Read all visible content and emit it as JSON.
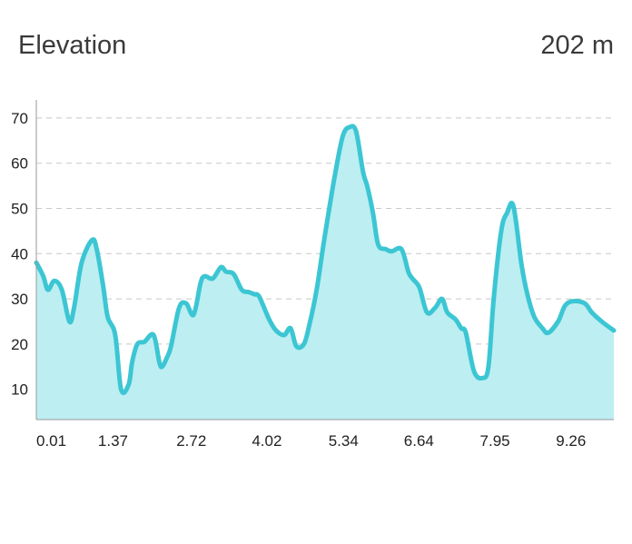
{
  "header": {
    "title": "Elevation",
    "value": "202 m"
  },
  "colors": {
    "line": "#3cc6d3",
    "fill": "#bdeef2",
    "grid": "#c8c8c8",
    "axis": "#9a9a9a"
  },
  "chart_data": {
    "type": "area",
    "title": "",
    "xlabel": "",
    "ylabel": "",
    "xlim": [
      0.01,
      9.96
    ],
    "ylim": [
      3.3,
      74
    ],
    "grid": true,
    "y_ticks": [
      10,
      20,
      30,
      40,
      50,
      60,
      70
    ],
    "x_ticks": [
      0.01,
      1.37,
      2.72,
      4.02,
      5.34,
      6.64,
      7.95,
      9.26
    ],
    "x_tick_labels": [
      "0.01",
      "1.37",
      "2.72",
      "4.02",
      "5.34",
      "6.64",
      "7.95",
      "9.26"
    ],
    "series": [
      {
        "x": [
          0.01,
          0.13,
          0.21,
          0.32,
          0.45,
          0.58,
          0.66,
          0.79,
          0.97,
          1.05,
          1.16,
          1.24,
          1.37,
          1.47,
          1.6,
          1.66,
          1.75,
          1.87,
          2.03,
          2.13,
          2.18,
          2.26,
          2.33,
          2.47,
          2.59,
          2.72,
          2.84,
          2.91,
          3.05,
          3.19,
          3.28,
          3.41,
          3.55,
          3.67,
          3.77,
          3.85,
          4.02,
          4.14,
          4.28,
          4.39,
          4.49,
          4.62,
          4.71,
          4.84,
          4.97,
          5.15,
          5.29,
          5.41,
          5.52,
          5.64,
          5.71,
          5.81,
          5.9,
          6.03,
          6.13,
          6.3,
          6.42,
          6.49,
          6.61,
          6.74,
          6.88,
          7.0,
          7.09,
          7.23,
          7.33,
          7.41,
          7.55,
          7.7,
          7.8,
          7.89,
          8.02,
          8.12,
          8.23,
          8.37,
          8.47,
          8.59,
          8.73,
          8.83,
          9.0,
          9.12,
          9.26,
          9.46,
          9.58,
          9.75,
          9.96
        ],
        "values": [
          38,
          35,
          32,
          34,
          32,
          25,
          28,
          38,
          43,
          41,
          33,
          26,
          22,
          10,
          11,
          16,
          20,
          20.5,
          22,
          16,
          15,
          17,
          19.5,
          28,
          29,
          26.5,
          33.5,
          35,
          34.5,
          37,
          36,
          35.5,
          32,
          31.5,
          31,
          30.5,
          25.5,
          23,
          22,
          23.5,
          19.5,
          20,
          24,
          32,
          43,
          57,
          66,
          68,
          67,
          58,
          55,
          49,
          42,
          41,
          40.5,
          41,
          36,
          34.5,
          32.5,
          27,
          28,
          30,
          27,
          25.5,
          23.5,
          22.5,
          14,
          12.5,
          15,
          30,
          45,
          49,
          50.5,
          37.5,
          31,
          26,
          23.5,
          22.5,
          25,
          28.5,
          29.5,
          29,
          27,
          25,
          23
        ]
      }
    ]
  }
}
